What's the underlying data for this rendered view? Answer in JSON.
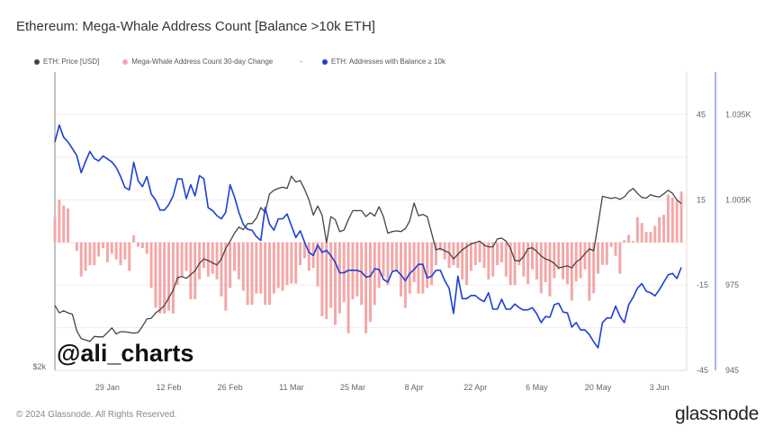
{
  "title": "Ethereum: Mega-Whale Address Count [Balance >10k ETH]",
  "legend": [
    {
      "label": "ETH: Price [USD]",
      "color": "#444444"
    },
    {
      "label": "Mega-Whale Address Count 30-day Change",
      "color": "#f4a7b0"
    },
    {
      "label": "-",
      "color": null
    },
    {
      "label": "ETH: Addresses with Balance ≥ 10k",
      "color": "#1d3fd6"
    }
  ],
  "watermark": "@ali_charts",
  "footer": "© 2024 Glassnode. All Rights Reserved.",
  "logo": "glassnode",
  "chart_data": {
    "type": "line+bar",
    "title": "Ethereum: Mega-Whale Address Count [Balance >10k ETH]",
    "x_ticks": [
      {
        "date": "2024-01-29",
        "label": "29 Jan"
      },
      {
        "date": "2024-02-12",
        "label": "12 Feb"
      },
      {
        "date": "2024-02-26",
        "label": "26 Feb"
      },
      {
        "date": "2024-03-11",
        "label": "11 Mar"
      },
      {
        "date": "2024-03-25",
        "label": "25 Mar"
      },
      {
        "date": "2024-04-08",
        "label": "8 Apr"
      },
      {
        "date": "2024-04-22",
        "label": "22 Apr"
      },
      {
        "date": "2024-05-06",
        "label": "6 May"
      },
      {
        "date": "2024-05-20",
        "label": "20 May"
      },
      {
        "date": "2024-06-03",
        "label": "3 Jun"
      }
    ],
    "price_axis": {
      "scale": "log",
      "range": [
        2000,
        6000
      ],
      "ticks": [
        {
          "value": 2000,
          "label": "$2k"
        }
      ]
    },
    "change_axis": {
      "range": [
        -45,
        60
      ],
      "ticks": [
        {
          "value": 45,
          "label": "45"
        },
        {
          "value": 15,
          "label": "15"
        },
        {
          "value": -15,
          "label": "-15"
        },
        {
          "value": -45,
          "label": "-45"
        }
      ]
    },
    "address_axis": {
      "range": [
        945,
        1050
      ],
      "ticks": [
        {
          "value": 1035,
          "label": "1.035K"
        },
        {
          "value": 1005,
          "label": "1.005K"
        },
        {
          "value": 975,
          "label": "975"
        },
        {
          "value": 945,
          "label": "945"
        }
      ]
    },
    "grid": true,
    "legend_position": "top-left",
    "dates": [
      "2024-01-17",
      "2024-01-18",
      "2024-01-19",
      "2024-01-20",
      "2024-01-21",
      "2024-01-22",
      "2024-01-23",
      "2024-01-24",
      "2024-01-25",
      "2024-01-26",
      "2024-01-27",
      "2024-01-28",
      "2024-01-29",
      "2024-01-30",
      "2024-01-31",
      "2024-02-01",
      "2024-02-02",
      "2024-02-03",
      "2024-02-04",
      "2024-02-05",
      "2024-02-06",
      "2024-02-07",
      "2024-02-08",
      "2024-02-09",
      "2024-02-10",
      "2024-02-11",
      "2024-02-12",
      "2024-02-13",
      "2024-02-14",
      "2024-02-15",
      "2024-02-16",
      "2024-02-17",
      "2024-02-18",
      "2024-02-19",
      "2024-02-20",
      "2024-02-21",
      "2024-02-22",
      "2024-02-23",
      "2024-02-24",
      "2024-02-25",
      "2024-02-26",
      "2024-02-27",
      "2024-02-28",
      "2024-02-29",
      "2024-03-01",
      "2024-03-02",
      "2024-03-03",
      "2024-03-04",
      "2024-03-05",
      "2024-03-06",
      "2024-03-07",
      "2024-03-08",
      "2024-03-09",
      "2024-03-10",
      "2024-03-11",
      "2024-03-12",
      "2024-03-13",
      "2024-03-14",
      "2024-03-15",
      "2024-03-16",
      "2024-03-17",
      "2024-03-18",
      "2024-03-19",
      "2024-03-20",
      "2024-03-21",
      "2024-03-22",
      "2024-03-23",
      "2024-03-24",
      "2024-03-25",
      "2024-03-26",
      "2024-03-27",
      "2024-03-28",
      "2024-03-29",
      "2024-03-30",
      "2024-03-31",
      "2024-04-01",
      "2024-04-02",
      "2024-04-03",
      "2024-04-04",
      "2024-04-05",
      "2024-04-06",
      "2024-04-07",
      "2024-04-08",
      "2024-04-09",
      "2024-04-10",
      "2024-04-11",
      "2024-04-12",
      "2024-04-13",
      "2024-04-14",
      "2024-04-15",
      "2024-04-16",
      "2024-04-17",
      "2024-04-18",
      "2024-04-19",
      "2024-04-20",
      "2024-04-21",
      "2024-04-22",
      "2024-04-23",
      "2024-04-24",
      "2024-04-25",
      "2024-04-26",
      "2024-04-27",
      "2024-04-28",
      "2024-04-29",
      "2024-04-30",
      "2024-05-01",
      "2024-05-02",
      "2024-05-03",
      "2024-05-04",
      "2024-05-05",
      "2024-05-06",
      "2024-05-07",
      "2024-05-08",
      "2024-05-09",
      "2024-05-10",
      "2024-05-11",
      "2024-05-12",
      "2024-05-13",
      "2024-05-14",
      "2024-05-15",
      "2024-05-16",
      "2024-05-17",
      "2024-05-18",
      "2024-05-19",
      "2024-05-20",
      "2024-05-21",
      "2024-05-22",
      "2024-05-23",
      "2024-05-24",
      "2024-05-25",
      "2024-05-26",
      "2024-05-27",
      "2024-05-28",
      "2024-05-29",
      "2024-05-30",
      "2024-05-31",
      "2024-06-01",
      "2024-06-02",
      "2024-06-03",
      "2024-06-04",
      "2024-06-05",
      "2024-06-06",
      "2024-06-07",
      "2024-06-08"
    ],
    "series": [
      {
        "name": "ETH: Price [USD]",
        "type": "line",
        "axis": "price",
        "color": "#444444",
        "values": [
          2540,
          2471,
          2490,
          2471,
          2457,
          2312,
          2248,
          2237,
          2224,
          2266,
          2262,
          2262,
          2299,
          2338,
          2286,
          2305,
          2305,
          2299,
          2293,
          2299,
          2351,
          2416,
          2422,
          2471,
          2499,
          2540,
          2611,
          2684,
          2813,
          2823,
          2807,
          2845,
          2884,
          2964,
          3014,
          2997,
          2970,
          2948,
          3014,
          3133,
          3218,
          3314,
          3388,
          3358,
          3432,
          3432,
          3502,
          3641,
          3580,
          3830,
          3882,
          3908,
          3926,
          3908,
          4088,
          3999,
          4021,
          3895,
          3746,
          3542,
          3662,
          3542,
          3200,
          3522,
          3483,
          3333,
          3351,
          3483,
          3600,
          3600,
          3600,
          3522,
          3573,
          3530,
          3653,
          3522,
          3314,
          3333,
          3341,
          3333,
          3370,
          3464,
          3702,
          3534,
          3550,
          3522,
          3314,
          3117,
          3133,
          3106,
          3082,
          3014,
          3065,
          3117,
          3151,
          3186,
          3200,
          3218,
          3169,
          3151,
          3151,
          3243,
          3254,
          3218,
          3133,
          2997,
          2990,
          3040,
          3130,
          3140,
          3098,
          3047,
          3014,
          2997,
          2964,
          2916,
          2926,
          2938,
          2916,
          2980,
          3014,
          3072,
          3127,
          3106,
          3424,
          3795,
          3778,
          3765,
          3778,
          3753,
          3787,
          3862,
          3908,
          3836,
          3778,
          3770,
          3818,
          3795,
          3787,
          3830,
          3882,
          3836,
          3746,
          3694
        ]
      },
      {
        "name": "Mega-Whale Address Count 30-day Change",
        "type": "bar",
        "axis": "change",
        "color": "#f4a7a7",
        "values": [
          9,
          15,
          13,
          12,
          0,
          -3,
          -12,
          -10,
          -8,
          -8,
          -5,
          -2,
          -7,
          -4,
          -6,
          -8,
          -6,
          -10,
          2.5,
          -1.5,
          -2,
          -4,
          -16,
          -23,
          -25,
          -25,
          -24,
          -25,
          -15,
          -12,
          -10,
          -20,
          -20,
          -13,
          -9,
          -12,
          -11,
          -13,
          -19,
          -24,
          -16,
          -10,
          -13,
          -17,
          -22,
          -22,
          -18,
          -18,
          -22,
          -22,
          -18,
          -16,
          -17,
          -15,
          -14.5,
          -14.5,
          -8,
          -5.6,
          -10,
          -9,
          -15.5,
          -26,
          -27,
          -23,
          -29,
          -25,
          -21,
          -32,
          -20,
          -19,
          -22,
          -32,
          -28,
          -22,
          -16,
          -12,
          -15,
          -10,
          -10,
          -19,
          -23,
          -18,
          -14,
          -18,
          -18,
          -16,
          -15,
          -8,
          -3,
          -6,
          -9,
          -8,
          -9,
          -13,
          -15,
          -10,
          -8,
          -7,
          -9,
          -13,
          -12,
          -8,
          -7,
          -12,
          -15,
          -15,
          -8,
          -12,
          -14.7,
          -9.5,
          -13,
          -17.9,
          -14,
          -19,
          -12.6,
          -9.5,
          -13,
          -14.7,
          -20.5,
          -13.7,
          -12.6,
          -9.5,
          -20.5,
          -17.9,
          -11,
          -7.9,
          -7.9,
          -1.6,
          -4.7,
          -11,
          0.8,
          2.6,
          0.5,
          8.9,
          6.8,
          3.7,
          3.7,
          5.8,
          8.9,
          9.7,
          16.8,
          15.8,
          14.7,
          17.9
        ]
      },
      {
        "name": "ETH: Addresses with Balance ≥ 10k",
        "type": "line",
        "axis": "address",
        "color": "#1d3fd6",
        "values": [
          1025.3,
          1031.3,
          1027,
          1025.3,
          1023,
          1020.6,
          1014.5,
          1018.5,
          1022,
          1019.5,
          1018.7,
          1020.4,
          1019.4,
          1018.3,
          1016.4,
          1013.2,
          1009.3,
          1008.5,
          1018.2,
          1011.7,
          1009.6,
          1013.2,
          1007,
          1004.9,
          1001.4,
          1001.4,
          1003.3,
          1006.4,
          1012.4,
          1012.3,
          1005.4,
          1010.3,
          1006.4,
          1013.5,
          1012.4,
          1002.2,
          1001.2,
          999.4,
          998.3,
          1000.6,
          1010.3,
          1005.9,
          1000.6,
          996.4,
          994.6,
          994.3,
          992,
          990.7,
          1002.2,
          996.4,
          994.3,
          998.3,
          998.3,
          1000,
          995.9,
          991.7,
          994.1,
          990.1,
          986.5,
          985.4,
          989.1,
          986.5,
          987.2,
          985.4,
          983,
          979.3,
          979.3,
          980.2,
          980.2,
          980.2,
          979.6,
          977.8,
          978.1,
          980.7,
          980.5,
          977,
          976,
          979.7,
          980.2,
          978.6,
          976.5,
          979.1,
          980.5,
          982.3,
          982.3,
          977.5,
          978.1,
          980.2,
          980.2,
          976.5,
          973.9,
          965,
          978.1,
          970.2,
          970.2,
          971.3,
          971.3,
          970,
          969.2,
          972.3,
          966.5,
          966.5,
          970,
          966.5,
          966.5,
          968.3,
          967,
          966.2,
          966.3,
          967,
          964.9,
          961.8,
          963.9,
          963.7,
          968.1,
          968.6,
          965.5,
          965.2,
          960.2,
          961.8,
          959.2,
          959.2,
          957.6,
          955,
          952.9,
          961.8,
          963.4,
          963.4,
          967.6,
          963.9,
          961.8,
          968.1,
          970.7,
          973.9,
          975.5,
          972.8,
          972.3,
          971.2,
          973.4,
          976,
          978.6,
          979.1,
          977.3,
          981.2
        ]
      }
    ]
  }
}
